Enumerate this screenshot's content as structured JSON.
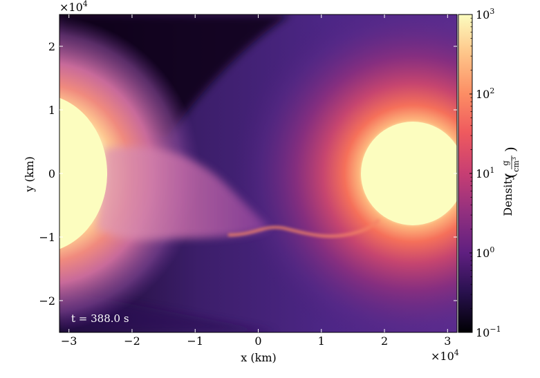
{
  "chart_data": {
    "type": "heatmap",
    "title": "",
    "xlabel": "x  (km)",
    "ylabel": "y  (km)",
    "x_scale_label": "×10",
    "x_scale_exp": "4",
    "y_scale_label": "×10",
    "y_scale_exp": "4",
    "xlim": [
      -3.15,
      3.15
    ],
    "ylim": [
      -2.5,
      2.5
    ],
    "x_ticks": [
      {
        "value": -3,
        "label": "−3"
      },
      {
        "value": -2,
        "label": "−2"
      },
      {
        "value": -1,
        "label": "−1"
      },
      {
        "value": 0,
        "label": "0"
      },
      {
        "value": 1,
        "label": "1"
      },
      {
        "value": 2,
        "label": "2"
      },
      {
        "value": 3,
        "label": "3"
      }
    ],
    "y_ticks": [
      {
        "value": -2,
        "label": "−2"
      },
      {
        "value": -1,
        "label": "−1"
      },
      {
        "value": 0,
        "label": "0"
      },
      {
        "value": 1,
        "label": "1"
      },
      {
        "value": 2,
        "label": "2"
      }
    ],
    "colorbar": {
      "label": "Density",
      "unit_num": "g",
      "unit_den": "cm",
      "unit_den_exp": "3",
      "scale": "log",
      "range": [
        0.1,
        1000
      ],
      "colormap": "magma",
      "ticks": [
        {
          "value": 0.1,
          "base": "10",
          "exp": "−1"
        },
        {
          "value": 1,
          "base": "10",
          "exp": "0"
        },
        {
          "value": 10,
          "base": "10",
          "exp": "1"
        },
        {
          "value": 100,
          "base": "10",
          "exp": "2"
        },
        {
          "value": 1000,
          "base": "10",
          "exp": "3"
        }
      ]
    },
    "annotation": "t = 388.0 s",
    "objects": {
      "left_star_center": [
        -3.3,
        0.0
      ],
      "right_star_center": [
        2.5,
        0.0
      ]
    },
    "grid": false
  }
}
